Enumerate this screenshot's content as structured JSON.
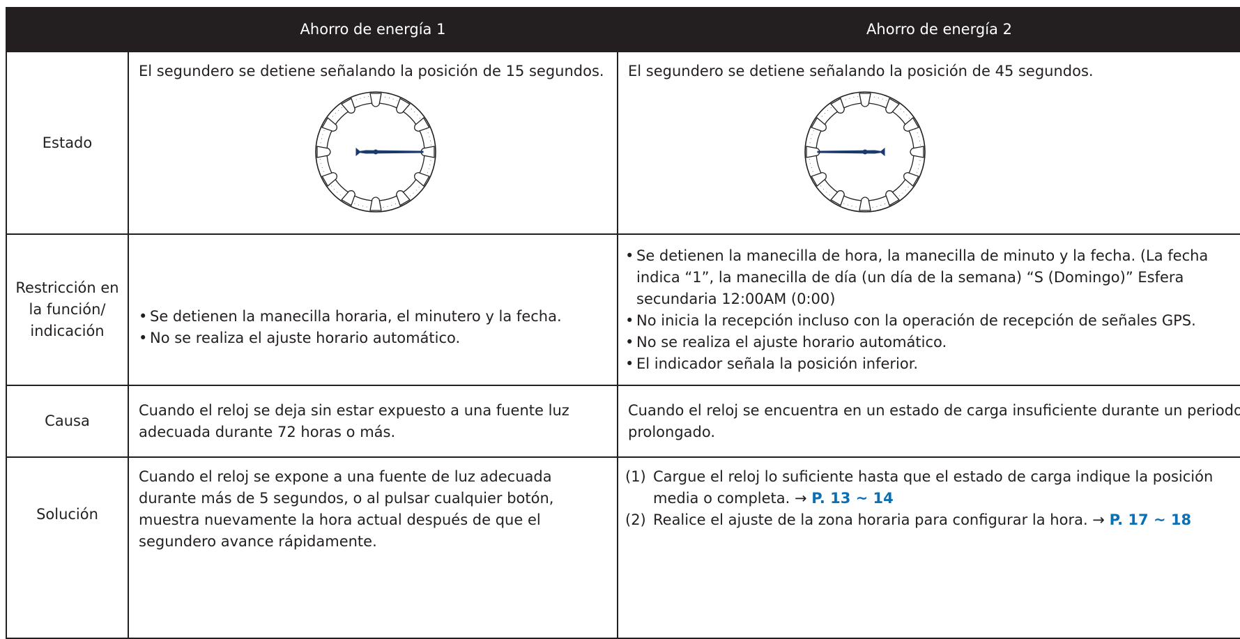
{
  "table": {
    "header": {
      "columns": [
        "Ahorro de energía 1",
        "Ahorro de energía 2"
      ]
    },
    "rows": [
      {
        "label": "Estado",
        "cells": [
          "El segundero se detiene señalando la posición de 15 segundos.",
          "El segundero se detiene señalando la posición de 45 segundos."
        ]
      },
      {
        "label": "Restricción en la función/ indicación",
        "cells": [
          [
            "Se detienen la manecilla horaria, el minutero y la fecha.",
            "No se realiza el ajuste horario automático."
          ],
          [
            "Se detienen la manecilla de hora, la manecilla de minuto y la fecha. (La fecha indica “1”, la manecilla de día (un día de la semana) “S (Domingo)” Esfera secundaria 12:00AM (0:00)",
            "No inicia la recepción incluso con la operación de recepción de señales GPS.",
            "No se realiza el ajuste horario automático.",
            "El indicador señala la posición inferior."
          ]
        ]
      },
      {
        "label": "Causa",
        "cells": [
          "Cuando el reloj se deja sin estar expuesto a una fuente luz adecuada durante 72 horas o más.",
          "Cuando el reloj se encuentra en un estado de carga insuficiente durante un periodo prolongado."
        ]
      },
      {
        "label": "Solución",
        "cells": [
          "Cuando el reloj se expone a una fuente de luz adecuada durante más de 5 segundos, o al pulsar cualquier botón, muestra nuevamente la hora actual después de que el segundero avance rápidamente.",
          [
            {
              "number": "(1)",
              "text": "Cargue el reloj lo suficiente hasta que el estado de carga indique la posición media o completa. →",
              "ref": "P. 13 ~ 14"
            },
            {
              "number": "(2)",
              "text": "Realice el ajuste de la zona horaria para configurar la hora. →",
              "ref": "P. 17 ~ 18"
            }
          ]
        ]
      }
    ]
  }
}
